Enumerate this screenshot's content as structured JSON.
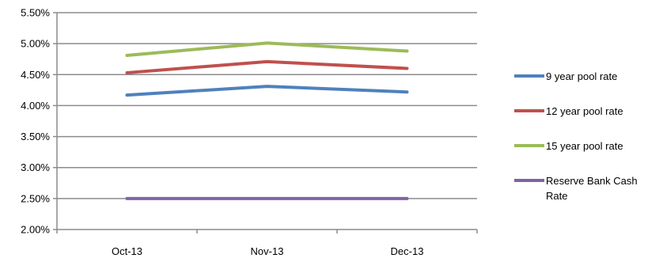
{
  "chart_data": {
    "type": "line",
    "categories": [
      "Oct-13",
      "Nov-13",
      "Dec-13"
    ],
    "ylim": [
      0.02,
      0.055
    ],
    "yticks": [
      0.02,
      0.025,
      0.03,
      0.035,
      0.04,
      0.045,
      0.05,
      0.055
    ],
    "ytick_labels": [
      "2.00%",
      "2.50%",
      "3.00%",
      "3.50%",
      "4.00%",
      "4.50%",
      "5.00%",
      "5.50%"
    ],
    "grid": "horizontal",
    "legend": "right",
    "series": [
      {
        "name": "9 year pool rate",
        "color": "#4F81BD",
        "values": [
          0.0417,
          0.0431,
          0.0422
        ]
      },
      {
        "name": "12 year pool rate",
        "color": "#C0504D",
        "values": [
          0.0453,
          0.0471,
          0.046
        ]
      },
      {
        "name": "15 year pool rate",
        "color": "#9BBB59",
        "values": [
          0.0481,
          0.0501,
          0.0488
        ]
      },
      {
        "name": "Reserve Bank Cash Rate",
        "color": "#8064A2",
        "values": [
          0.025,
          0.025,
          0.025
        ]
      }
    ]
  }
}
